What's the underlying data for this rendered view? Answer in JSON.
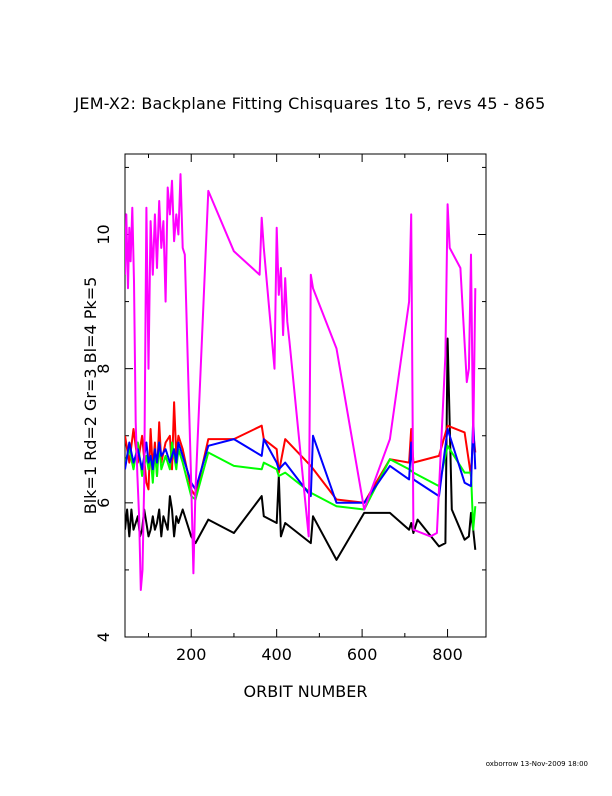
{
  "chart_data": {
    "type": "line",
    "title": "JEM-X2: Backplane Fitting Chisquares 1to 5, revs 45 - 865",
    "xlabel": "ORBIT NUMBER",
    "ylabel": "Blk=1 Rd=2 Gr=3 Bl=4 Pk=5",
    "xlim": [
      45,
      890
    ],
    "ylim": [
      4,
      11.2
    ],
    "xticks": [
      200,
      400,
      600,
      800
    ],
    "yticks": [
      4,
      6,
      8,
      10
    ],
    "xtick_labels": [
      "200",
      "400",
      "600",
      "800"
    ],
    "ytick_labels": [
      "4",
      "6",
      "8",
      "10"
    ],
    "grid": false,
    "legend": "none",
    "series": [
      {
        "color": "#000000",
        "x": [
          45,
          50,
          55,
          60,
          65,
          70,
          75,
          80,
          85,
          90,
          95,
          100,
          105,
          110,
          115,
          120,
          125,
          130,
          135,
          140,
          145,
          150,
          155,
          160,
          165,
          170,
          175,
          180,
          200,
          210,
          240,
          300,
          365,
          370,
          400,
          405,
          410,
          420,
          480,
          485,
          540,
          605,
          665,
          710,
          715,
          720,
          730,
          780,
          795,
          800,
          810,
          840,
          850,
          855,
          860,
          865
        ],
        "y": [
          5.6,
          5.9,
          5.5,
          5.9,
          5.6,
          5.7,
          5.8,
          5.5,
          5.6,
          5.9,
          5.7,
          5.5,
          5.6,
          5.8,
          5.6,
          5.7,
          5.9,
          5.5,
          5.8,
          5.7,
          5.6,
          6.1,
          5.9,
          5.5,
          5.8,
          5.7,
          5.8,
          5.9,
          5.5,
          5.4,
          5.75,
          5.55,
          6.1,
          5.8,
          5.7,
          6.4,
          5.5,
          5.7,
          5.4,
          5.8,
          5.15,
          5.85,
          5.85,
          5.6,
          5.7,
          5.55,
          5.75,
          5.35,
          5.4,
          8.45,
          5.9,
          5.45,
          5.5,
          5.85,
          5.6,
          5.3
        ]
      },
      {
        "color": "#ff0000",
        "x": [
          45,
          55,
          65,
          75,
          85,
          95,
          100,
          105,
          110,
          115,
          120,
          125,
          130,
          140,
          150,
          155,
          160,
          165,
          170,
          180,
          200,
          210,
          240,
          300,
          365,
          370,
          400,
          405,
          420,
          480,
          540,
          605,
          665,
          710,
          715,
          720,
          780,
          800,
          840,
          855,
          860,
          865
        ],
        "y": [
          7.0,
          6.6,
          7.1,
          6.6,
          7.0,
          6.3,
          6.2,
          7.1,
          6.5,
          6.9,
          6.4,
          7.2,
          6.6,
          6.9,
          7.0,
          6.5,
          7.5,
          6.7,
          7.0,
          6.8,
          6.2,
          6.1,
          6.95,
          6.95,
          7.15,
          6.95,
          6.8,
          6.45,
          6.95,
          6.55,
          6.05,
          6.0,
          6.65,
          6.6,
          7.1,
          6.6,
          6.7,
          7.15,
          7.05,
          6.4,
          7.05,
          6.75
        ]
      },
      {
        "color": "#00ff00",
        "x": [
          45,
          55,
          65,
          75,
          85,
          95,
          100,
          105,
          110,
          115,
          120,
          125,
          130,
          140,
          150,
          155,
          160,
          165,
          170,
          180,
          200,
          210,
          240,
          300,
          365,
          370,
          400,
          405,
          420,
          480,
          540,
          605,
          665,
          710,
          720,
          780,
          800,
          840,
          855,
          860,
          865
        ],
        "y": [
          6.6,
          6.8,
          6.5,
          6.9,
          6.4,
          6.7,
          6.5,
          6.7,
          6.3,
          6.8,
          6.4,
          6.9,
          6.5,
          6.7,
          6.5,
          6.9,
          6.7,
          6.5,
          6.8,
          6.6,
          6.1,
          6.05,
          6.75,
          6.55,
          6.5,
          6.6,
          6.5,
          6.4,
          6.45,
          6.15,
          5.95,
          5.9,
          6.65,
          6.5,
          6.45,
          6.25,
          6.85,
          6.45,
          6.45,
          5.6,
          5.95
        ]
      },
      {
        "color": "#0000ff",
        "x": [
          45,
          55,
          65,
          75,
          85,
          95,
          100,
          105,
          110,
          115,
          120,
          125,
          130,
          140,
          150,
          155,
          160,
          165,
          170,
          180,
          200,
          210,
          240,
          300,
          365,
          370,
          400,
          405,
          420,
          480,
          485,
          540,
          605,
          665,
          710,
          715,
          720,
          780,
          800,
          840,
          855,
          860,
          865
        ],
        "y": [
          6.5,
          6.9,
          6.6,
          6.8,
          6.5,
          6.9,
          6.6,
          6.7,
          6.5,
          6.8,
          6.6,
          6.9,
          6.7,
          6.8,
          6.6,
          6.7,
          6.8,
          6.6,
          6.9,
          6.7,
          6.3,
          6.2,
          6.85,
          6.95,
          6.7,
          6.95,
          6.6,
          6.5,
          6.6,
          6.1,
          7.0,
          6.0,
          6.0,
          6.55,
          6.35,
          6.9,
          6.35,
          6.1,
          7.1,
          6.3,
          6.25,
          7.25,
          6.5
        ]
      },
      {
        "color": "#ff00ff",
        "x": [
          45,
          48,
          52,
          55,
          58,
          62,
          66,
          70,
          74,
          78,
          82,
          86,
          90,
          95,
          100,
          105,
          110,
          115,
          120,
          125,
          130,
          135,
          140,
          145,
          150,
          155,
          160,
          165,
          170,
          175,
          180,
          185,
          200,
          205,
          210,
          240,
          300,
          360,
          365,
          370,
          395,
          400,
          405,
          410,
          415,
          420,
          425,
          430,
          475,
          480,
          485,
          540,
          605,
          665,
          710,
          715,
          720,
          760,
          775,
          795,
          800,
          805,
          830,
          845,
          850,
          855,
          860,
          865
        ],
        "y": [
          9.4,
          10.3,
          9.2,
          10.1,
          9.6,
          10.4,
          9.3,
          7.2,
          6.4,
          5.8,
          4.7,
          5.0,
          6.3,
          10.4,
          8.0,
          10.2,
          9.4,
          10.3,
          9.5,
          10.5,
          9.8,
          10.2,
          9.0,
          10.7,
          10.3,
          10.8,
          9.9,
          10.3,
          10.0,
          10.9,
          9.8,
          9.7,
          6.3,
          4.95,
          6.2,
          10.65,
          9.75,
          9.4,
          10.25,
          9.8,
          8.0,
          10.1,
          9.1,
          9.5,
          8.5,
          9.35,
          8.7,
          8.4,
          5.5,
          9.4,
          9.2,
          8.3,
          5.9,
          6.95,
          9.0,
          10.3,
          5.6,
          5.5,
          5.55,
          8.2,
          10.45,
          9.8,
          9.5,
          7.8,
          8.0,
          9.7,
          6.9,
          9.2
        ]
      }
    ]
  },
  "footer": {
    "stamp": "oxborrow 13-Nov-2009 18:00"
  }
}
